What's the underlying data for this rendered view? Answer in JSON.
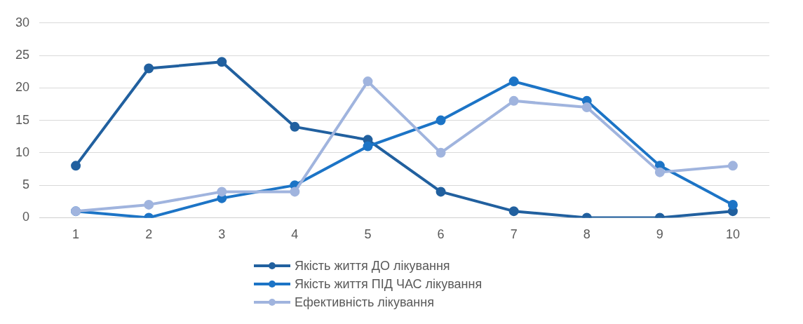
{
  "chart_data": {
    "type": "line",
    "categories": [
      "1",
      "2",
      "3",
      "4",
      "5",
      "6",
      "7",
      "8",
      "9",
      "10"
    ],
    "series": [
      {
        "name": "Якість життя ДО лікування",
        "color": "#21609f",
        "values": [
          8,
          23,
          24,
          14,
          12,
          4,
          1,
          0,
          0,
          1
        ]
      },
      {
        "name": "Якість життя ПІД ЧАС лікування",
        "color": "#1c74c6",
        "values": [
          1,
          0,
          3,
          5,
          11,
          15,
          21,
          18,
          8,
          2
        ]
      },
      {
        "name": "Ефективність лікування",
        "color": "#a0b4de",
        "values": [
          1,
          2,
          4,
          4,
          21,
          10,
          18,
          17,
          7,
          8
        ]
      }
    ],
    "ylim": [
      0,
      30
    ],
    "yticks": [
      0,
      5,
      10,
      15,
      20,
      25,
      30
    ],
    "grid": "y",
    "legend": "bottom",
    "marker": "circle",
    "line_style": "solid"
  }
}
